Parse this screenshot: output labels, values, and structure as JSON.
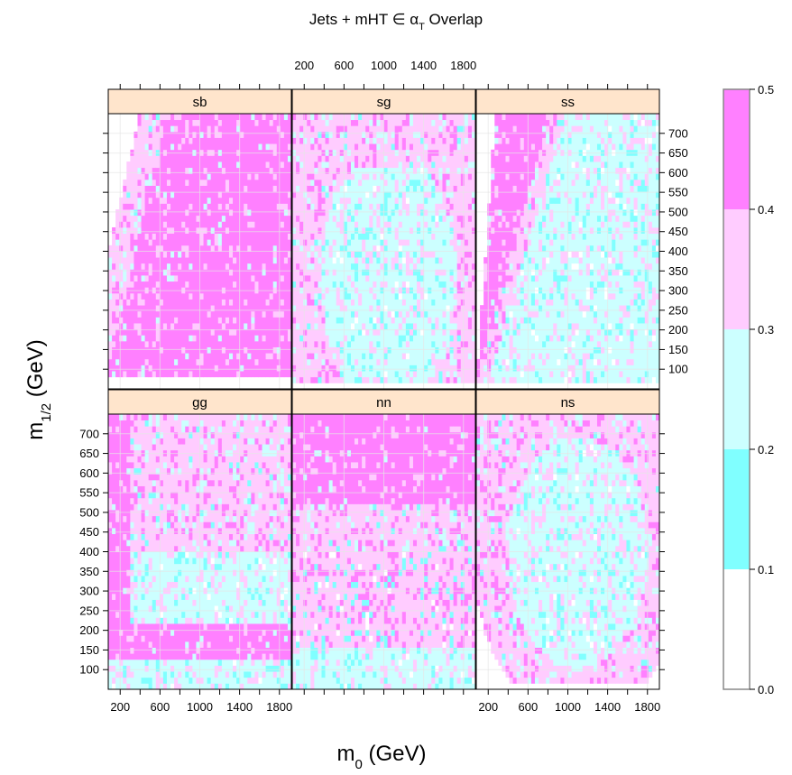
{
  "chart_data": {
    "type": "heatmap",
    "title": "Jets + mHT ∈ αT Overlap",
    "title_parts": {
      "main": "Jets + mHT ∈ α",
      "sub": "T",
      "tail": " Overlap"
    },
    "xlabel": "m0  (GeV)",
    "xlabel_parts": {
      "main": "m",
      "sub": "0",
      "tail": "  (GeV)"
    },
    "ylabel": "m1/2  (GeV)",
    "ylabel_parts": {
      "main": "m",
      "sub": "1/2",
      "tail": "  (GeV)"
    },
    "xlim": [
      80,
      1920
    ],
    "ylim": [
      50,
      750
    ],
    "x_ticks": [
      200,
      600,
      1000,
      1400,
      1800
    ],
    "x_tick_labels": [
      "200",
      "600",
      "1000",
      "1400",
      "1800"
    ],
    "y_ticks": [
      100,
      150,
      200,
      250,
      300,
      350,
      400,
      450,
      500,
      550,
      600,
      650,
      700
    ],
    "y_tick_labels": [
      "100",
      "150",
      "200",
      "250",
      "300",
      "350",
      "400",
      "450",
      "500",
      "550",
      "600",
      "650",
      "700"
    ],
    "panel_layout": {
      "rows": 2,
      "cols": 3
    },
    "panels": [
      "sb",
      "sg",
      "ss",
      "gg",
      "nn",
      "ns"
    ],
    "grid": true,
    "colorbar": {
      "breaks": [
        0.0,
        0.1,
        0.2,
        0.3,
        0.4,
        0.5
      ],
      "tick_labels": [
        "0.0",
        "0.1",
        "0.2",
        "0.3",
        "0.4",
        "0.5"
      ],
      "colors": [
        "#ffffff",
        "#80ffff",
        "#ccffff",
        "#ffccff",
        "#ff80ff"
      ]
    },
    "description_of_values": "Overlap fraction per (m0, m1/2) cell, binned in 0.1 steps; white cells mean no entry or 0.0-0.1"
  }
}
